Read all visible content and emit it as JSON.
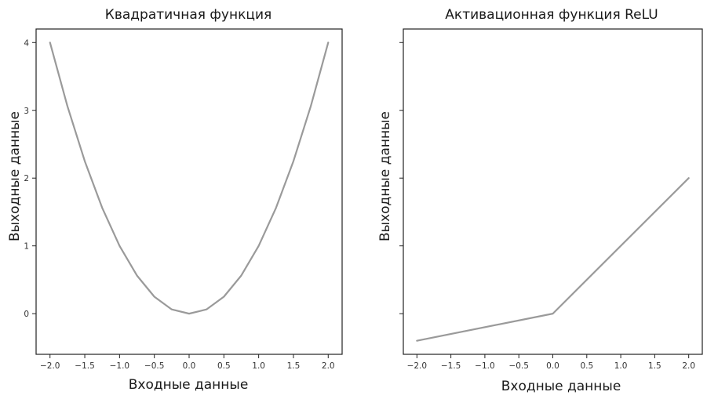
{
  "chart_data": [
    {
      "type": "line",
      "title": "Квадратичная функция",
      "xlabel": "Входные данные",
      "ylabel": "Выходные данные",
      "xlim": [
        -2.2,
        2.2
      ],
      "ylim": [
        -0.6,
        4.2
      ],
      "xticks": [
        -2.0,
        -1.5,
        -1.0,
        -0.5,
        0.0,
        0.5,
        1.0,
        1.5,
        2.0
      ],
      "xtick_labels": [
        "−2.0",
        "−1.5",
        "−1.0",
        "−0.5",
        "0.0",
        "0.5",
        "1.0",
        "1.5",
        "2.0"
      ],
      "yticks": [
        0,
        1,
        2,
        3,
        4
      ],
      "ytick_labels": [
        "0",
        "1",
        "2",
        "3",
        "4"
      ],
      "grid": false,
      "line_color": "#9a9a9a",
      "series": [
        {
          "x": [
            -2.0,
            -1.75,
            -1.5,
            -1.25,
            -1.0,
            -0.75,
            -0.5,
            -0.25,
            0.0,
            0.25,
            0.5,
            0.75,
            1.0,
            1.25,
            1.5,
            1.75,
            2.0
          ],
          "y": [
            4.0,
            3.0625,
            2.25,
            1.5625,
            1.0,
            0.5625,
            0.25,
            0.0625,
            0.0,
            0.0625,
            0.25,
            0.5625,
            1.0,
            1.5625,
            2.25,
            3.0625,
            4.0
          ]
        }
      ]
    },
    {
      "type": "line",
      "title": "Активационная функция ReLU",
      "xlabel": "Входные данные",
      "ylabel": "Выходные данные",
      "xlim": [
        -2.2,
        2.2
      ],
      "ylim": [
        -0.6,
        4.2
      ],
      "xticks": [
        -2.0,
        -1.5,
        -1.0,
        -0.5,
        0.0,
        0.5,
        1.0,
        1.5,
        2.0
      ],
      "xtick_labels": [
        "−2.0",
        "−1.5",
        "−1.0",
        "−0.5",
        "0.0",
        "0.5",
        "1.0",
        "1.5",
        "2.0"
      ],
      "yticks": [
        0,
        1,
        2,
        3,
        4
      ],
      "ytick_labels": [],
      "grid": false,
      "line_color": "#9a9a9a",
      "series": [
        {
          "x": [
            -2.0,
            0.0,
            2.0
          ],
          "y": [
            -0.4,
            0.0,
            2.0
          ]
        }
      ]
    }
  ]
}
